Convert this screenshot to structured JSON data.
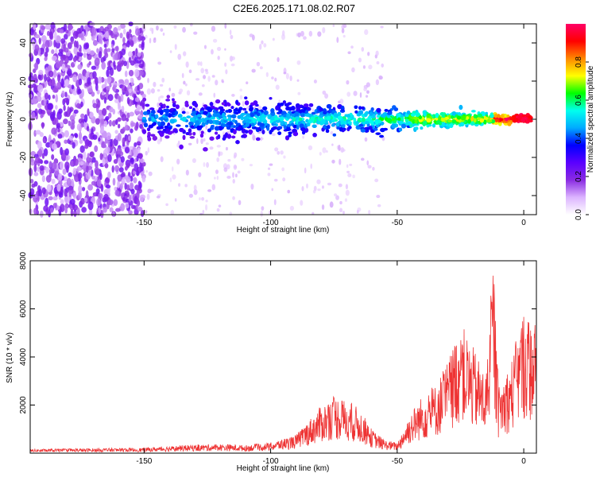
{
  "figure_title": "C2E6.2025.171.08.02.R07",
  "chart_data": [
    {
      "type": "heatmap",
      "xlabel": "Height of straight line (km)",
      "ylabel": "Frequency (Hz)",
      "xlim": [
        -195,
        5
      ],
      "ylim": [
        -50,
        50
      ],
      "xticks": [
        -150,
        -100,
        -50,
        0
      ],
      "yticks": [
        -40,
        -20,
        0,
        20,
        40
      ],
      "colorbar": {
        "label": "Normalized spectral amplitude",
        "range": [
          0,
          1
        ],
        "ticks": [
          "0.0",
          "0.2",
          "0.4",
          "0.6",
          "0.8"
        ],
        "colormap": [
          "#ffffff",
          "#dcb4ff",
          "#8a2be2",
          "#5a00ff",
          "#0000ff",
          "#00aaff",
          "#00ffee",
          "#00ff00",
          "#ffff00",
          "#ff8800",
          "#ff0000",
          "#ff0066"
        ]
      },
      "signal_band": {
        "center_frequency_hz": 0,
        "noise_region_km": [
          -195,
          -150
        ],
        "signal_region_km": [
          -150,
          3
        ],
        "peak_amplitude_near_km": 0
      }
    },
    {
      "type": "line",
      "xlabel": "Height of straight line (km)",
      "ylabel": "SNR (10 * v/v)",
      "xlim": [
        -195,
        5
      ],
      "ylim": [
        0,
        8000
      ],
      "xticks": [
        -150,
        -100,
        -50,
        0
      ],
      "yticks": [
        2000,
        4000,
        6000,
        8000
      ],
      "line_color": "#ee3333",
      "envelope": {
        "x": [
          -195,
          -170,
          -150,
          -135,
          -120,
          -110,
          -100,
          -90,
          -80,
          -75,
          -70,
          -65,
          -60,
          -55,
          -50,
          -45,
          -40,
          -35,
          -30,
          -25,
          -20,
          -15,
          -12,
          -10,
          -5,
          0,
          3,
          5
        ],
        "y": [
          150,
          180,
          200,
          300,
          350,
          300,
          400,
          700,
          1800,
          2200,
          2000,
          1700,
          900,
          500,
          400,
          1500,
          2200,
          2600,
          3500,
          5000,
          4000,
          3000,
          7500,
          2500,
          3500,
          5500,
          5000,
          5300
        ]
      }
    }
  ]
}
